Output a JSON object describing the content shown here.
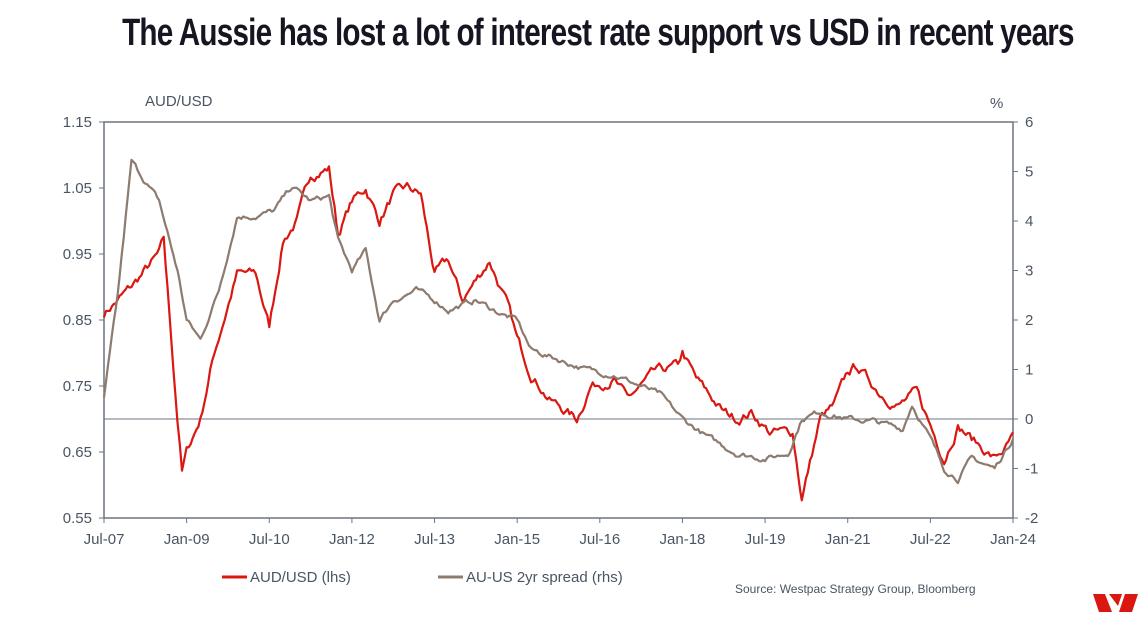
{
  "title": "The Aussie has lost a lot of interest rate support vs USD in recent years",
  "source": "Source: Westpac Strategy Group, Bloomberg",
  "logo": {
    "name": "westpac-logo",
    "color": "#da1710"
  },
  "chart_data": {
    "type": "line",
    "title": "The Aussie has lost a lot of interest rate support vs USD in recent years",
    "ylabel_left": "AUD/USD",
    "ylabel_right": "%",
    "ylim_left": [
      0.55,
      1.15
    ],
    "ylim_right": [
      -2,
      6
    ],
    "yticks_left": [
      "1.15",
      "1.05",
      "0.95",
      "0.85",
      "0.75",
      "0.65",
      "0.55"
    ],
    "yticks_right": [
      "6",
      "5",
      "4",
      "3",
      "2",
      "1",
      "0",
      "-1",
      "-2"
    ],
    "xticks": [
      "Jul-07",
      "Jan-09",
      "Jul-10",
      "Jan-12",
      "Jul-13",
      "Jan-15",
      "Jul-16",
      "Jan-18",
      "Jul-19",
      "Jan-21",
      "Jul-22",
      "Jan-24"
    ],
    "xrange": [
      "2007-07",
      "2024-01"
    ],
    "reference_line_right": 0,
    "grid": false,
    "legend_placement": "bottom",
    "series": [
      {
        "name": "AUD/USD (lhs)",
        "axis": "left",
        "color": "#da1710",
        "points": [
          [
            "2007-07",
            0.86
          ],
          [
            "2008-01",
            0.9
          ],
          [
            "2008-07",
            0.95
          ],
          [
            "2008-08",
            0.97
          ],
          [
            "2008-11",
            0.7
          ],
          [
            "2008-12",
            0.62
          ],
          [
            "2009-01",
            0.65
          ],
          [
            "2009-04",
            0.7
          ],
          [
            "2009-07",
            0.8
          ],
          [
            "2009-12",
            0.92
          ],
          [
            "2010-04",
            0.92
          ],
          [
            "2010-07",
            0.84
          ],
          [
            "2010-10",
            0.97
          ],
          [
            "2011-01",
            1.0
          ],
          [
            "2011-04",
            1.07
          ],
          [
            "2011-08",
            1.08
          ],
          [
            "2011-10",
            0.98
          ],
          [
            "2012-01",
            1.03
          ],
          [
            "2012-04",
            1.05
          ],
          [
            "2012-07",
            1.0
          ],
          [
            "2012-10",
            1.04
          ],
          [
            "2013-01",
            1.05
          ],
          [
            "2013-04",
            1.04
          ],
          [
            "2013-07",
            0.92
          ],
          [
            "2013-10",
            0.94
          ],
          [
            "2014-01",
            0.88
          ],
          [
            "2014-07",
            0.94
          ],
          [
            "2014-11",
            0.87
          ],
          [
            "2015-01",
            0.82
          ],
          [
            "2015-04",
            0.77
          ],
          [
            "2015-08",
            0.73
          ],
          [
            "2015-12",
            0.71
          ],
          [
            "2016-02",
            0.7
          ],
          [
            "2016-05",
            0.75
          ],
          [
            "2016-10",
            0.76
          ],
          [
            "2017-01",
            0.73
          ],
          [
            "2017-07",
            0.77
          ],
          [
            "2017-12",
            0.78
          ],
          [
            "2018-01",
            0.8
          ],
          [
            "2018-04",
            0.76
          ],
          [
            "2018-10",
            0.71
          ],
          [
            "2019-01",
            0.7
          ],
          [
            "2019-04",
            0.71
          ],
          [
            "2019-08",
            0.68
          ],
          [
            "2020-01",
            0.68
          ],
          [
            "2020-03",
            0.58
          ],
          [
            "2020-07",
            0.7
          ],
          [
            "2020-10",
            0.72
          ],
          [
            "2021-01",
            0.77
          ],
          [
            "2021-03",
            0.78
          ],
          [
            "2021-08",
            0.74
          ],
          [
            "2021-12",
            0.72
          ],
          [
            "2022-04",
            0.74
          ],
          [
            "2022-07",
            0.69
          ],
          [
            "2022-10",
            0.64
          ],
          [
            "2023-01",
            0.69
          ],
          [
            "2023-04",
            0.67
          ],
          [
            "2023-09",
            0.64
          ],
          [
            "2023-12",
            0.66
          ],
          [
            "2024-01",
            0.68
          ]
        ]
      },
      {
        "name": "AU-US 2yr spread (rhs)",
        "axis": "right",
        "color": "#8c7b6e",
        "points": [
          [
            "2007-07",
            0.4
          ],
          [
            "2007-10",
            2.5
          ],
          [
            "2008-01",
            5.2
          ],
          [
            "2008-07",
            4.4
          ],
          [
            "2008-11",
            3.0
          ],
          [
            "2009-01",
            2.0
          ],
          [
            "2009-04",
            1.6
          ],
          [
            "2009-08",
            2.6
          ],
          [
            "2009-12",
            4.1
          ],
          [
            "2010-04",
            4.1
          ],
          [
            "2010-08",
            4.2
          ],
          [
            "2010-12",
            4.7
          ],
          [
            "2011-04",
            4.4
          ],
          [
            "2011-08",
            4.5
          ],
          [
            "2011-10",
            3.6
          ],
          [
            "2012-01",
            3.0
          ],
          [
            "2012-04",
            3.4
          ],
          [
            "2012-07",
            2.0
          ],
          [
            "2012-10",
            2.4
          ],
          [
            "2013-03",
            2.6
          ],
          [
            "2013-07",
            2.4
          ],
          [
            "2013-10",
            2.2
          ],
          [
            "2014-04",
            2.4
          ],
          [
            "2014-10",
            2.1
          ],
          [
            "2015-01",
            2.0
          ],
          [
            "2015-04",
            1.4
          ],
          [
            "2015-10",
            1.2
          ],
          [
            "2016-04",
            1.0
          ],
          [
            "2016-10",
            0.9
          ],
          [
            "2017-03",
            0.7
          ],
          [
            "2017-08",
            0.5
          ],
          [
            "2018-01",
            0.0
          ],
          [
            "2018-07",
            -0.4
          ],
          [
            "2019-01",
            -0.7
          ],
          [
            "2019-07",
            -0.8
          ],
          [
            "2019-12",
            -0.7
          ],
          [
            "2020-03",
            0.0
          ],
          [
            "2020-07",
            0.15
          ],
          [
            "2021-01",
            0.0
          ],
          [
            "2021-07",
            -0.05
          ],
          [
            "2022-01",
            -0.2
          ],
          [
            "2022-03",
            0.3
          ],
          [
            "2022-07",
            -0.4
          ],
          [
            "2022-10",
            -1.0
          ],
          [
            "2023-01",
            -1.2
          ],
          [
            "2023-04",
            -0.8
          ],
          [
            "2023-09",
            -1.0
          ],
          [
            "2024-01",
            -0.4
          ]
        ]
      }
    ]
  }
}
